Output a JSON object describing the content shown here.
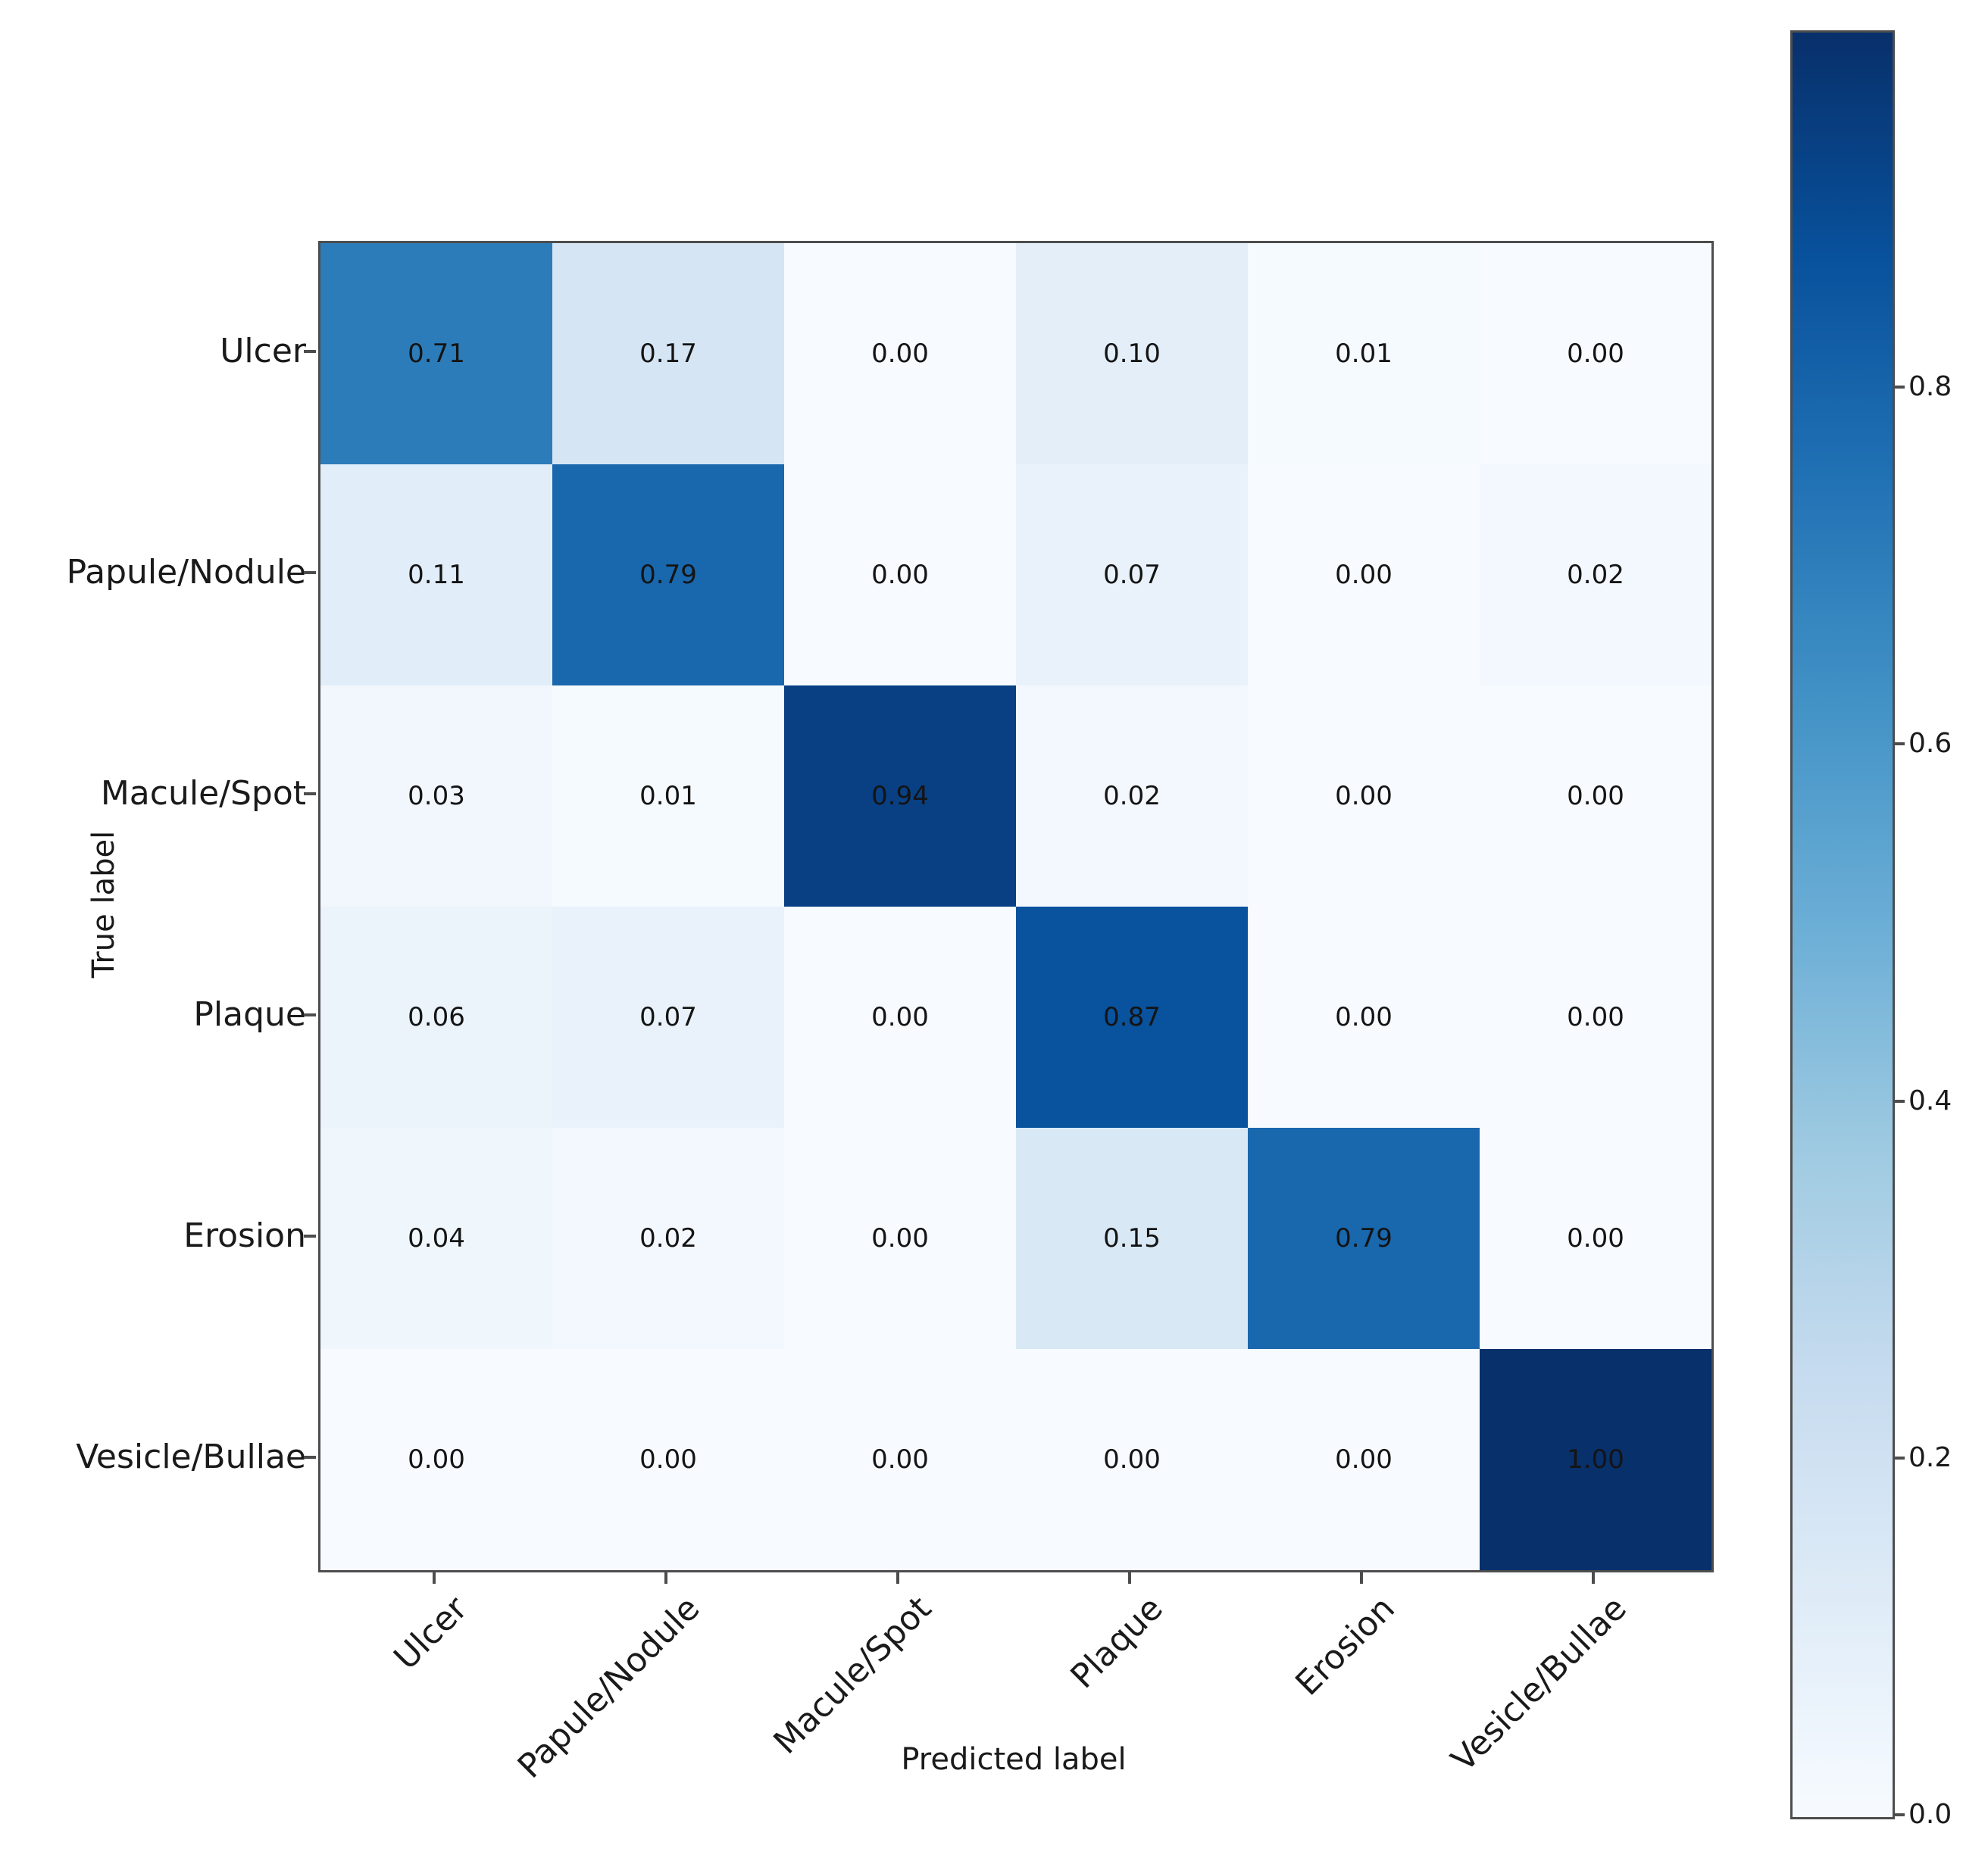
{
  "chart_data": {
    "type": "heatmap",
    "subtype": "confusion-matrix",
    "title": "",
    "xlabel": "Predicted label",
    "ylabel": "True label",
    "categories": [
      "Ulcer",
      "Papule/Nodule",
      "Macule/Spot",
      "Plaque",
      "Erosion",
      "Vesicle/Bullae"
    ],
    "matrix": [
      [
        0.71,
        0.17,
        0.0,
        0.1,
        0.01,
        0.0
      ],
      [
        0.11,
        0.79,
        0.0,
        0.07,
        0.0,
        0.02
      ],
      [
        0.03,
        0.01,
        0.94,
        0.02,
        0.0,
        0.0
      ],
      [
        0.06,
        0.07,
        0.0,
        0.87,
        0.0,
        0.0
      ],
      [
        0.04,
        0.02,
        0.0,
        0.15,
        0.79,
        0.0
      ],
      [
        0.0,
        0.0,
        0.0,
        0.0,
        0.0,
        1.0
      ]
    ],
    "cell_value_decimals": 2,
    "vmin": 0.0,
    "vmax": 1.0,
    "grid": false,
    "legend_position": "right-colorbar",
    "colormap": "Blues",
    "colormap_stops": [
      {
        "t": 0.0,
        "color": "#f7fbff"
      },
      {
        "t": 0.125,
        "color": "#deebf7"
      },
      {
        "t": 0.25,
        "color": "#c6dbef"
      },
      {
        "t": 0.375,
        "color": "#9ecae1"
      },
      {
        "t": 0.5,
        "color": "#6baed6"
      },
      {
        "t": 0.625,
        "color": "#4292c6"
      },
      {
        "t": 0.75,
        "color": "#2171b5"
      },
      {
        "t": 0.875,
        "color": "#08519c"
      },
      {
        "t": 1.0,
        "color": "#08306b"
      }
    ],
    "colorbar_tick_labels": [
      "0.0",
      "0.2",
      "0.4",
      "0.6",
      "0.8"
    ],
    "colorbar_tick_values": [
      0.0,
      0.2,
      0.4,
      0.6,
      0.8
    ]
  },
  "colors": {
    "background": "#ffffff",
    "cell_text": "#141414",
    "label_text": "#1a1a1a",
    "spine": "#4d4d4d"
  }
}
